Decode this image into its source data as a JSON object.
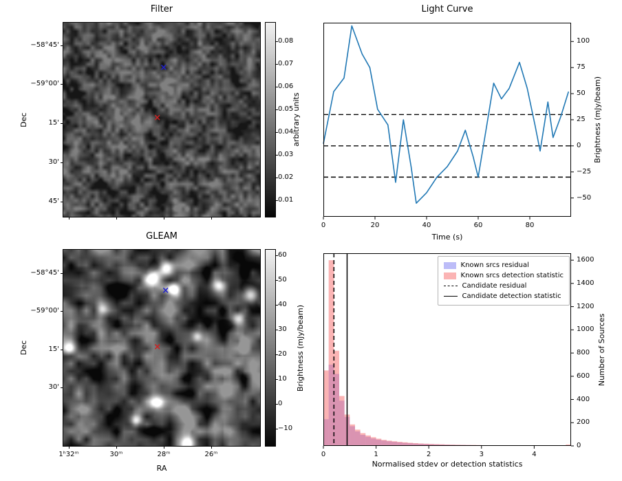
{
  "figure": {
    "background": "#ffffff"
  },
  "chart_data": [
    {
      "id": "filter_map",
      "type": "heatmap",
      "title": "Filter",
      "ylabel": "Dec",
      "ytick_labels": [
        "−58°45'",
        "−59°00'",
        "15'",
        "30'",
        "45'"
      ],
      "colorbar_label": "arbitrary units",
      "colorbar_ticks": [
        "0.08",
        "0.07",
        "0.06",
        "0.05",
        "0.04",
        "0.03",
        "0.02",
        "0.01"
      ],
      "markers": [
        {
          "name": "blue-x-marker",
          "shape": "x",
          "color": "#2222cc",
          "fx": 0.51,
          "fy": 0.235
        },
        {
          "name": "red-x-marker",
          "shape": "x",
          "color": "#cc2222",
          "fx": 0.478,
          "fy": 0.492
        }
      ],
      "noise": {
        "seed": 11,
        "octaves": [
          [
            18,
            0.55
          ],
          [
            6,
            0.45
          ]
        ],
        "gray_min": 22,
        "gray_max": 128
      }
    },
    {
      "id": "gleam_map",
      "type": "heatmap",
      "title": "GLEAM",
      "xlabel": "RA",
      "ylabel": "Dec",
      "xtick_labels": [
        "1ʰ32ᵐ",
        "30ᵐ",
        "28ᵐ",
        "26ᵐ"
      ],
      "ytick_labels": [
        "−58°45'",
        "−59°00'",
        "15'",
        "30'"
      ],
      "colorbar_label": "Brightness (mJy/beam)",
      "colorbar_ticks": [
        "60",
        "50",
        "40",
        "30",
        "20",
        "10",
        "0",
        "−10"
      ],
      "markers": [
        {
          "name": "blue-x-marker",
          "shape": "x",
          "color": "#2222cc",
          "fx": 0.52,
          "fy": 0.21
        },
        {
          "name": "red-x-marker",
          "shape": "x",
          "color": "#cc2222",
          "fx": 0.478,
          "fy": 0.498
        }
      ],
      "noise": {
        "seed": 42,
        "octaves": [
          [
            26,
            0.6
          ],
          [
            11,
            0.4
          ]
        ],
        "gray_min": 8,
        "gray_max": 150
      },
      "blobs": [
        [
          0.45,
          0.14,
          9,
          230
        ],
        [
          0.52,
          0.09,
          7,
          200
        ],
        [
          0.56,
          0.2,
          6,
          220
        ],
        [
          0.79,
          0.18,
          7,
          190
        ],
        [
          0.95,
          0.23,
          8,
          210
        ],
        [
          0.89,
          0.35,
          7,
          200
        ],
        [
          0.03,
          0.5,
          6,
          170
        ],
        [
          0.47,
          0.78,
          7,
          210
        ],
        [
          0.37,
          0.87,
          6,
          190
        ],
        [
          0.63,
          0.99,
          7,
          200
        ],
        [
          0.68,
          0.44,
          5,
          120
        ],
        [
          0.2,
          0.3,
          5,
          90
        ]
      ]
    },
    {
      "id": "light_curve",
      "type": "line",
      "title": "Light Curve",
      "xlabel": "Time (s)",
      "ylabel": "Brightness (mJy/beam)",
      "line_color": "#1f77b4",
      "x": [
        0,
        4,
        8,
        11,
        15,
        18,
        21,
        25,
        28,
        31,
        34,
        36,
        40,
        44,
        48,
        52,
        55,
        58,
        60,
        63,
        66,
        69,
        72,
        76,
        79,
        82,
        84,
        87,
        89,
        92,
        95
      ],
      "y": [
        2,
        52,
        65,
        115,
        88,
        75,
        35,
        20,
        -35,
        25,
        -20,
        -55,
        -45,
        -30,
        -20,
        -5,
        15,
        -10,
        -30,
        15,
        60,
        45,
        55,
        80,
        55,
        20,
        -5,
        42,
        8,
        28,
        52
      ],
      "xlim": [
        0,
        96
      ],
      "ylim": [
        -68,
        118
      ],
      "xtick_labels": [
        "0",
        "20",
        "40",
        "60",
        "80"
      ],
      "ytick_labels": [
        "100",
        "75",
        "50",
        "25",
        "0",
        "−25",
        "−50"
      ],
      "hlines": [
        {
          "y": 30,
          "style": "dashed"
        },
        {
          "y": 0,
          "style": "dashed"
        },
        {
          "y": -30,
          "style": "dashed"
        }
      ]
    },
    {
      "id": "histogram",
      "type": "bar",
      "xlabel": "Normalised stdev or detection statistics",
      "ylabel": "Number of Sources",
      "bin_start": 0,
      "bin_width": 0.1,
      "xlim": [
        0,
        4.7
      ],
      "ylim": [
        0,
        1660
      ],
      "xtick_labels": [
        "0",
        "1",
        "2",
        "3",
        "4"
      ],
      "ytick_labels": [
        "0",
        "200",
        "400",
        "600",
        "800",
        "1000",
        "1200",
        "1400",
        "1600"
      ],
      "series": [
        {
          "name": "Known srcs residual",
          "color": "rgba(106,106,240,0.45)",
          "values": [
            230,
            700,
            620,
            390,
            250,
            170,
            125,
            95,
            78,
            64,
            54,
            46,
            40,
            35,
            30,
            26,
            23,
            20,
            18,
            16,
            14,
            13,
            11,
            10,
            9,
            8,
            8,
            7,
            6,
            6,
            5,
            5,
            4,
            4,
            3,
            3,
            3,
            2,
            2,
            2,
            2,
            1,
            1,
            1,
            1,
            1,
            0
          ]
        },
        {
          "name": "Known srcs detection statistic",
          "color": "rgba(248,106,106,0.5)",
          "values": [
            650,
            1600,
            820,
            430,
            270,
            185,
            140,
            110,
            90,
            75,
            62,
            52,
            45,
            40,
            35,
            31,
            27,
            24,
            21,
            19,
            17,
            15,
            14,
            12,
            11,
            10,
            9,
            8,
            8,
            7,
            6,
            6,
            5,
            5,
            4,
            4,
            4,
            3,
            3,
            3,
            2,
            2,
            2,
            2,
            2,
            1,
            12
          ]
        }
      ],
      "vlines": [
        {
          "x": 0.2,
          "style": "dashed",
          "label": "Candidate residual"
        },
        {
          "x": 0.45,
          "style": "solid",
          "label": "Candidate detection statistic"
        }
      ],
      "legend": [
        "Known srcs residual",
        "Known srcs detection statistic",
        "Candidate residual",
        "Candidate detection statistic"
      ]
    }
  ]
}
